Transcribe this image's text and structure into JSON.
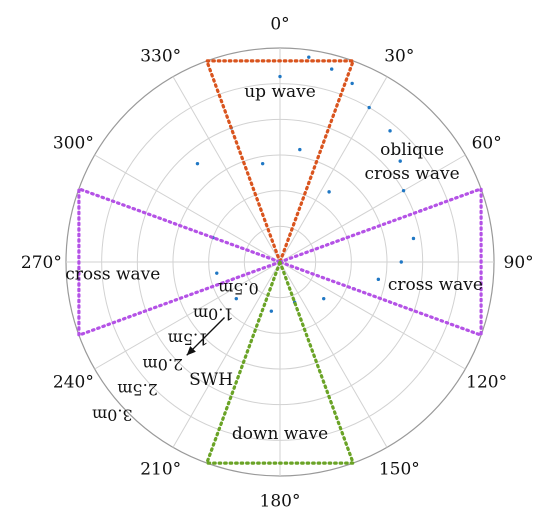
{
  "chart_data": {
    "type": "scatter",
    "coordinate_system": "polar",
    "zero_direction": "up",
    "direction": "clockwise",
    "angular_ticks_deg": [
      0,
      30,
      60,
      90,
      120,
      150,
      180,
      210,
      240,
      270,
      300,
      330
    ],
    "angular_tick_labels": [
      "0°",
      "30°",
      "60°",
      "90°",
      "120°",
      "150°",
      "180°",
      "210°",
      "240°",
      "270°",
      "300°",
      "330°"
    ],
    "radial_ticks": [
      0.5,
      1.0,
      1.5,
      2.0,
      2.5,
      3.0
    ],
    "radial_tick_labels": [
      "0.5m",
      "1.0m",
      "1.5m",
      "2.0m",
      "2.5m",
      "3.0m"
    ],
    "radial_range": [
      0,
      3.0
    ],
    "radial_axis_label": "SWH",
    "radial_axis_angle_deg": 225,
    "grid": true,
    "point_color": "#1f77c4",
    "points": [
      {
        "theta": 0,
        "r": 2.6
      },
      {
        "theta": 8,
        "r": 2.9
      },
      {
        "theta": 15,
        "r": 2.8
      },
      {
        "theta": 22,
        "r": 2.7
      },
      {
        "theta": 30,
        "r": 2.5
      },
      {
        "theta": 40,
        "r": 2.4
      },
      {
        "theta": 50,
        "r": 2.2
      },
      {
        "theta": 60,
        "r": 2.0
      },
      {
        "theta": 70,
        "r": 2.1
      },
      {
        "theta": 80,
        "r": 1.9
      },
      {
        "theta": 90,
        "r": 1.7
      },
      {
        "theta": 100,
        "r": 1.4
      },
      {
        "theta": 110,
        "r": 1.1
      },
      {
        "theta": 130,
        "r": 0.8
      },
      {
        "theta": 160,
        "r": 0.6
      },
      {
        "theta": 190,
        "r": 0.7
      },
      {
        "theta": 230,
        "r": 0.8
      },
      {
        "theta": 260,
        "r": 0.9
      },
      {
        "theta": 290,
        "r": 1.0
      },
      {
        "theta": 320,
        "r": 1.8
      },
      {
        "theta": 340,
        "r": 2.0
      },
      {
        "theta": 350,
        "r": 1.4
      },
      {
        "theta": 10,
        "r": 1.6
      },
      {
        "theta": 35,
        "r": 1.2
      }
    ],
    "regions": [
      {
        "name": "up wave",
        "theta_from": 340,
        "theta_to": 20,
        "r_max": 3.0,
        "color": "#d9541e"
      },
      {
        "name": "oblique cross wave",
        "theta_from": 20,
        "theta_to": 70,
        "r_max": 3.0,
        "color": null
      },
      {
        "name": "cross wave",
        "theta_from": 70,
        "theta_to": 110,
        "r_max": 3.0,
        "color": "#b452e6"
      },
      {
        "name": "cross wave",
        "theta_from": 250,
        "theta_to": 290,
        "r_max": 3.0,
        "color": "#b452e6"
      },
      {
        "name": "down wave",
        "theta_from": 160,
        "theta_to": 200,
        "r_max": 3.0,
        "color": "#6aa326"
      }
    ]
  }
}
